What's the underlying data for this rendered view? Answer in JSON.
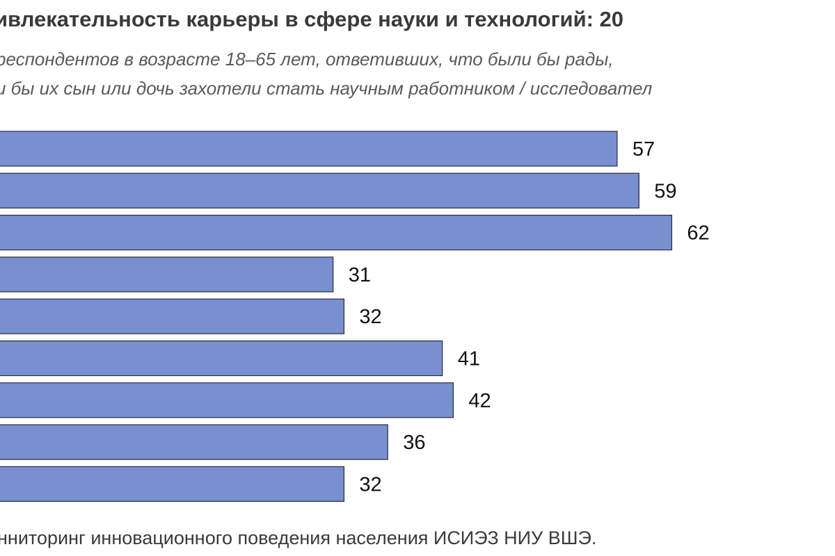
{
  "header": {
    "title": "ивлекательность карьеры в сфере науки и технологий: 20",
    "subtitle_line1": "респондентов в возрасте 18–65 лет, ответивших, что были бы рады,",
    "subtitle_line2": "и бы их сын или дочь захотели стать научным работником / исследовател"
  },
  "footer": {
    "source": "нниторинг инновационного поведения населения ИСИЭЗ НИУ ВШЭ."
  },
  "colors": {
    "bar_fill": "#7890d0",
    "bar_stroke": "#2a2a44",
    "title": "#3a3a3a",
    "subtitle": "#5a5a5a",
    "label": "#111111"
  },
  "chart_data": {
    "type": "bar",
    "orientation": "horizontal",
    "values": [
      57,
      59,
      62,
      31,
      32,
      41,
      42,
      36,
      32
    ],
    "data_labels": [
      "57",
      "59",
      "62",
      "31",
      "32",
      "41",
      "42",
      "36",
      "32"
    ],
    "grid": false,
    "legend": "none"
  }
}
